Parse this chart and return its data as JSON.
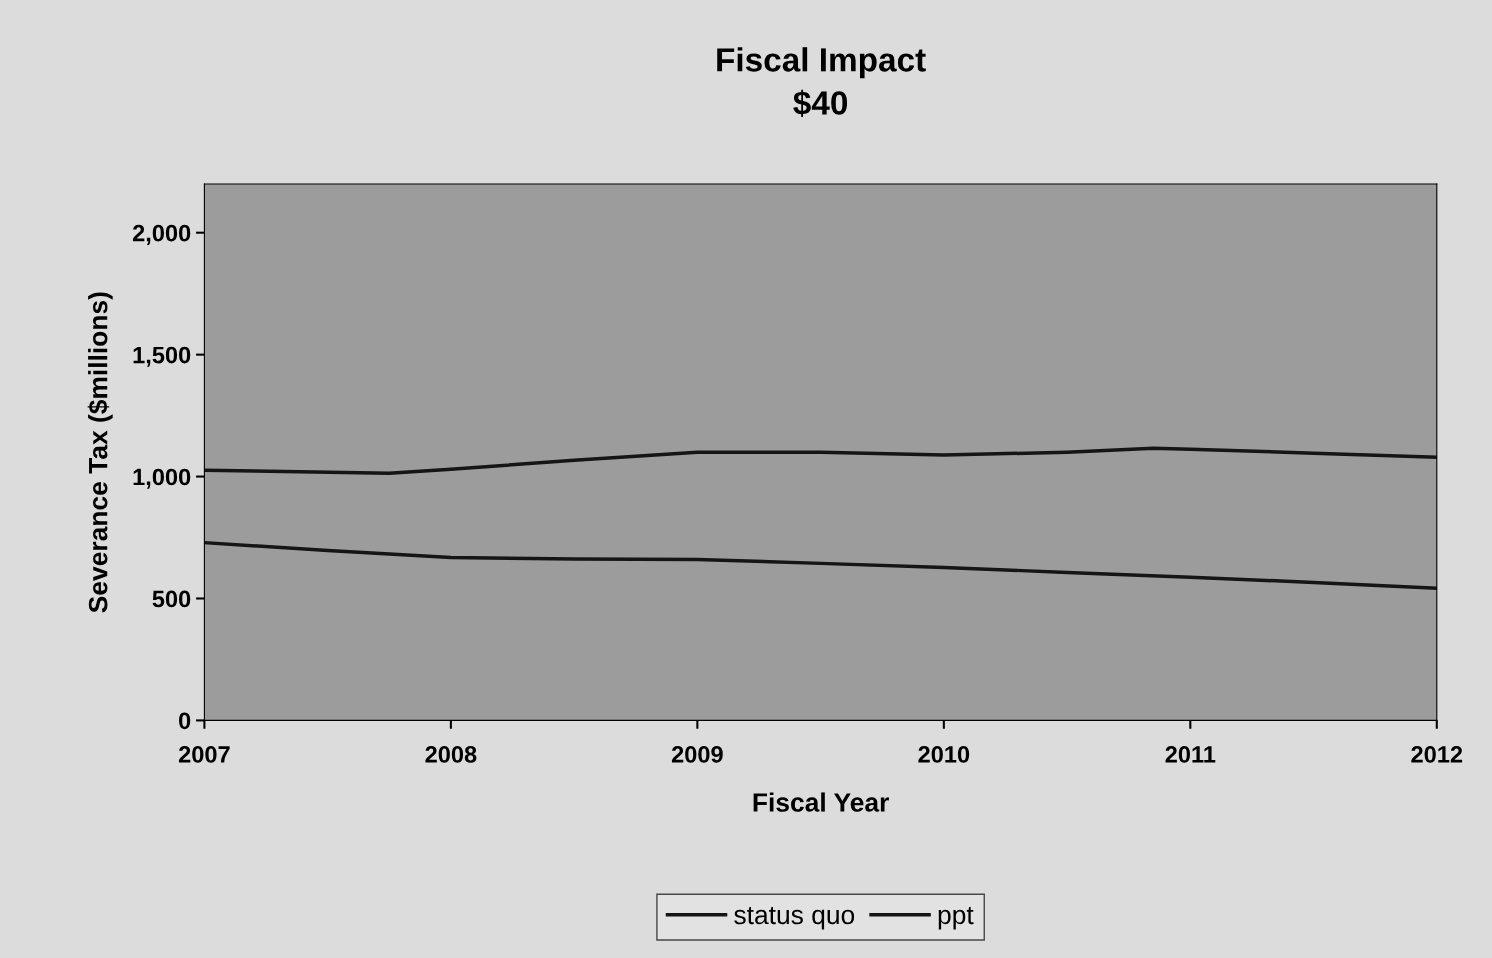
{
  "chart_data": {
    "type": "line",
    "title": "Fiscal Impact\n$40",
    "xlabel": "Fiscal Year",
    "ylabel": "Severance Tax ($millions)",
    "x": [
      2007,
      2007.5,
      2008,
      2008.5,
      2009,
      2009.5,
      2010,
      2010.5,
      2011,
      2011.5,
      2012
    ],
    "series": [
      {
        "name": "status quo",
        "color": "#151515",
        "values": [
          729,
          697,
          668,
          662,
          660,
          644,
          627,
          607,
          587,
          566,
          542
        ]
      },
      {
        "name": "ppt",
        "color": "#151515",
        "x": [
          2007,
          2007.75,
          2008,
          2008.5,
          2009,
          2009.5,
          2010,
          2010.5,
          2010.85,
          2011,
          2011.5,
          2012
        ],
        "values": [
          1026,
          1014,
          1030,
          1067,
          1100,
          1100,
          1088,
          1100,
          1116,
          1112,
          1096,
          1079
        ]
      }
    ],
    "xlim": [
      2007,
      2012
    ],
    "xticks": [
      2007,
      2008,
      2009,
      2010,
      2011,
      2012
    ],
    "ylim": [
      0,
      2200
    ],
    "yticks": [
      {
        "value": 0,
        "label": "0"
      },
      {
        "value": 500,
        "label": "500"
      },
      {
        "value": 1000,
        "label": "1,000"
      },
      {
        "value": 1500,
        "label": "1,500"
      },
      {
        "value": 2000,
        "label": "2,000"
      }
    ],
    "grid": false,
    "legend": "bottom",
    "marker": "none",
    "line_style": "solid"
  }
}
